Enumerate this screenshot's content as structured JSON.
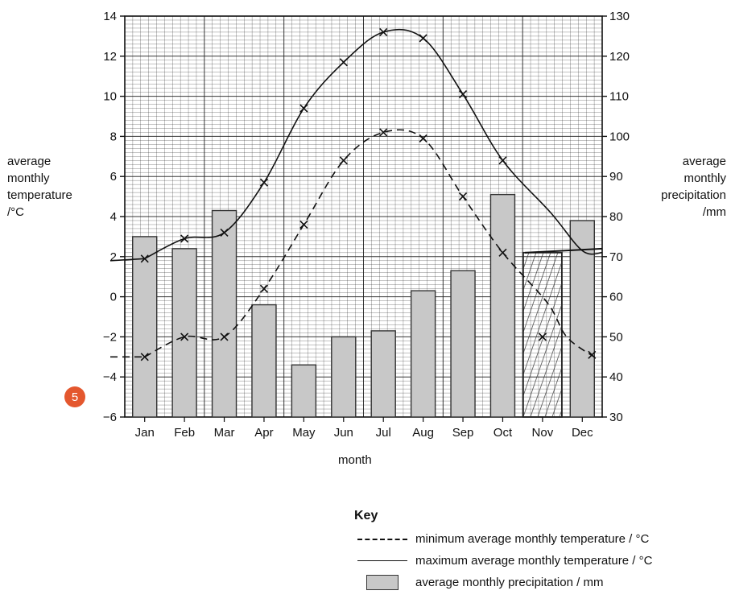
{
  "badge": "5",
  "axes": {
    "left_label": [
      "average",
      "monthly",
      "temperature",
      "/°C"
    ],
    "right_label": [
      "average",
      "monthly",
      "precipitation",
      "/mm"
    ],
    "x_label": "month"
  },
  "key": {
    "title": "Key",
    "min_label": "minimum average monthly temperature / °C",
    "max_label": "maximum average monthly temperature / °C",
    "precip_label": "average monthly precipitation / mm"
  },
  "colors": {
    "bar_fill": "#c8c8c8",
    "badge": "#e4572e",
    "grid": "#222222"
  },
  "chart_data": {
    "type": "bar",
    "categories": [
      "Jan",
      "Feb",
      "Mar",
      "Apr",
      "May",
      "Jun",
      "Jul",
      "Aug",
      "Sep",
      "Oct",
      "Nov",
      "Dec"
    ],
    "series": [
      {
        "name": "average monthly precipitation / mm",
        "axis": "right",
        "type": "bar",
        "values": [
          75,
          72,
          81.5,
          58,
          43,
          50,
          51.5,
          61.5,
          66.5,
          85.5,
          null,
          79
        ]
      },
      {
        "name": "minimum average monthly temperature / °C",
        "axis": "left",
        "type": "line",
        "style": "dashed",
        "values": [
          -3,
          -2,
          -2,
          0.4,
          3.6,
          6.8,
          8.2,
          7.9,
          5,
          2.2,
          null,
          null
        ]
      },
      {
        "name": "maximum average monthly temperature / °C",
        "axis": "left",
        "type": "line",
        "style": "solid",
        "values": [
          1.9,
          2.9,
          3.2,
          5.7,
          9.4,
          11.7,
          13.2,
          12.9,
          10.1,
          6.8,
          null,
          null
        ]
      }
    ],
    "left_axis": {
      "ylim": [
        -6,
        14
      ],
      "ticks": [
        -6,
        -4,
        -2,
        0,
        2,
        4,
        6,
        8,
        10,
        12,
        14
      ]
    },
    "right_axis": {
      "ylim": [
        30,
        130
      ],
      "ticks": [
        30,
        40,
        50,
        60,
        70,
        80,
        90,
        100,
        110,
        120,
        130
      ]
    },
    "grid": true
  }
}
